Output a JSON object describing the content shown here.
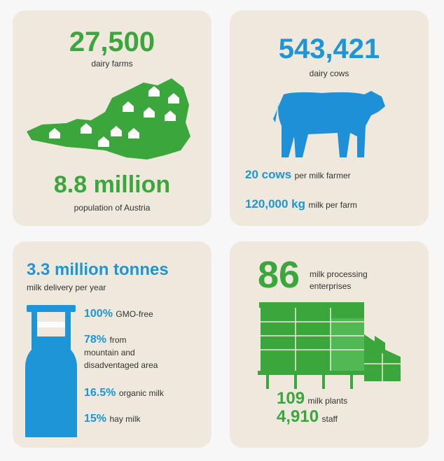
{
  "farms": {
    "value": "27,500",
    "label": "dairy farms",
    "population": "8.8 million",
    "population_label": "population of Austria"
  },
  "cows": {
    "value": "543,421",
    "label": "dairy cows",
    "per_farmer_value": "20 cows",
    "per_farmer_label": "per milk farmer",
    "per_farm_value": "120,000 kg",
    "per_farm_label": "milk per farm"
  },
  "milk": {
    "value": "3.3 million tonnes",
    "label": "milk delivery per year",
    "facts": [
      {
        "value": "100%",
        "lines": [
          "GMO-free"
        ]
      },
      {
        "value": "78%",
        "lines": [
          "from",
          "mountain and",
          "disadventaged area"
        ]
      },
      {
        "value": "16.5%",
        "lines": [
          "organic milk"
        ]
      },
      {
        "value": "15%",
        "lines": [
          "hay milk"
        ]
      }
    ]
  },
  "processing": {
    "value": "86",
    "lines": [
      "milk processing",
      "enterprises"
    ],
    "plants_value": "109",
    "plants_label": "milk plants",
    "staff_value": "4,910",
    "staff_label": "staff"
  }
}
